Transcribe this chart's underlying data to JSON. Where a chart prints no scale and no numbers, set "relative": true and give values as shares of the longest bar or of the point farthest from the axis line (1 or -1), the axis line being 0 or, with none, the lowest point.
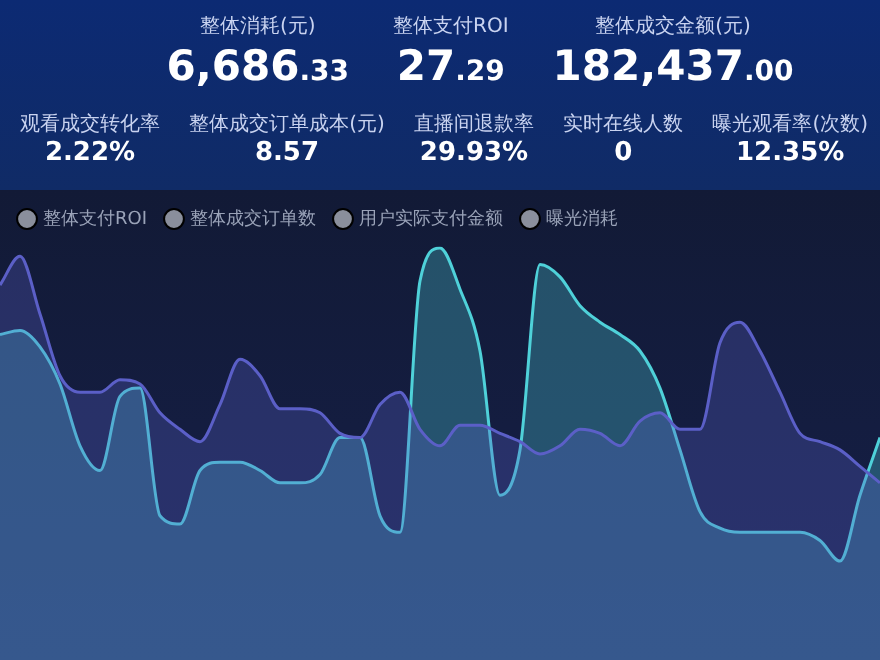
{
  "chart_data": [
    {
      "type": "other",
      "annotations": [
        "整体消耗(元)",
        "6,686.33",
        "整体支付ROI",
        "27.29",
        "整体成交金额(元)",
        "182,437.00",
        "观看成交转化率",
        "2.22%",
        "整体成交订单成本(元)",
        "8.57",
        "直播间退款率",
        "29.93%",
        "实时在线人数",
        "0",
        "曝光观看率(次数)",
        "12.35%"
      ]
    },
    {
      "type": "area",
      "relative": true,
      "legend": "top left",
      "tick_labels": false,
      "marker": "none",
      "categories": [
        null,
        null,
        null,
        null,
        null,
        null,
        null,
        null,
        null,
        null,
        null,
        null,
        null,
        null,
        null,
        null,
        null,
        null,
        null,
        null,
        null,
        null,
        null,
        null,
        null,
        null,
        null,
        null,
        null,
        null,
        null,
        null,
        null,
        null,
        null,
        null,
        null,
        null,
        null,
        null,
        null,
        null,
        null,
        null,
        null
      ],
      "series": [
        {
          "color": "#5b5fc7",
          "values": [
            0.91,
            0.98,
            0.84,
            0.69,
            0.65,
            0.65,
            0.68,
            0.67,
            0.6,
            0.56,
            0.53,
            0.62,
            0.73,
            0.69,
            0.61,
            0.61,
            0.6,
            0.55,
            0.54,
            0.62,
            0.65,
            0.56,
            0.52,
            0.57,
            0.57,
            0.55,
            0.53,
            0.5,
            0.52,
            0.56,
            0.55,
            0.52,
            0.58,
            0.6,
            0.56,
            0.56,
            0.77,
            0.82,
            0.75,
            0.65,
            0.55,
            0.53,
            0.51,
            0.47,
            0.43
          ]
        },
        {
          "color": "#4fd1d9",
          "values": [
            0.79,
            0.8,
            0.76,
            0.67,
            0.52,
            0.46,
            0.64,
            0.66,
            0.35,
            0.33,
            0.46,
            0.48,
            0.48,
            0.46,
            0.43,
            0.43,
            0.45,
            0.54,
            0.54,
            0.35,
            0.31,
            0.92,
            1,
            0.9,
            0.75,
            0.4,
            0.51,
            0.96,
            0.93,
            0.86,
            0.82,
            0.79,
            0.75,
            0.66,
            0.51,
            0.36,
            0.32,
            0.31,
            0.31,
            0.31,
            0.31,
            0.29,
            0.24,
            0.4,
            0.54
          ]
        },
        {
          "type": "line",
          "name": "整体支付ROI",
          "color": "#8a8f9c",
          "values": [
            null,
            null,
            null,
            null,
            null,
            null,
            null,
            null,
            null,
            null,
            null,
            null,
            null,
            null,
            null,
            null,
            null,
            null,
            null,
            null,
            null,
            null,
            null,
            null,
            null,
            null,
            null,
            null,
            null,
            null,
            null,
            null,
            null,
            null,
            null,
            null,
            null,
            null,
            null,
            null,
            null,
            null,
            null,
            null,
            null
          ]
        },
        {
          "type": "line",
          "name": "整体成交订单数",
          "color": "#8a8f9c",
          "values": [
            null,
            null,
            null,
            null,
            null,
            null,
            null,
            null,
            null,
            null,
            null,
            null,
            null,
            null,
            null,
            null,
            null,
            null,
            null,
            null,
            null,
            null,
            null,
            null,
            null,
            null,
            null,
            null,
            null,
            null,
            null,
            null,
            null,
            null,
            null,
            null,
            null,
            null,
            null,
            null,
            null,
            null,
            null,
            null,
            null
          ]
        },
        {
          "type": "line",
          "name": "用户实际支付金额",
          "color": "#8a8f9c",
          "values": [
            null,
            null,
            null,
            null,
            null,
            null,
            null,
            null,
            null,
            null,
            null,
            null,
            null,
            null,
            null,
            null,
            null,
            null,
            null,
            null,
            null,
            null,
            null,
            null,
            null,
            null,
            null,
            null,
            null,
            null,
            null,
            null,
            null,
            null,
            null,
            null,
            null,
            null,
            null,
            null,
            null,
            null,
            null,
            null,
            null
          ]
        },
        {
          "type": "line",
          "name": "曝光消耗",
          "color": "#8a8f9c",
          "values": [
            null,
            null,
            null,
            null,
            null,
            null,
            null,
            null,
            null,
            null,
            null,
            null,
            null,
            null,
            null,
            null,
            null,
            null,
            null,
            null,
            null,
            null,
            null,
            null,
            null,
            null,
            null,
            null,
            null,
            null,
            null,
            null,
            null,
            null,
            null,
            null,
            null,
            null,
            null,
            null,
            null,
            null,
            null,
            null,
            null
          ]
        }
      ]
    }
  ]
}
